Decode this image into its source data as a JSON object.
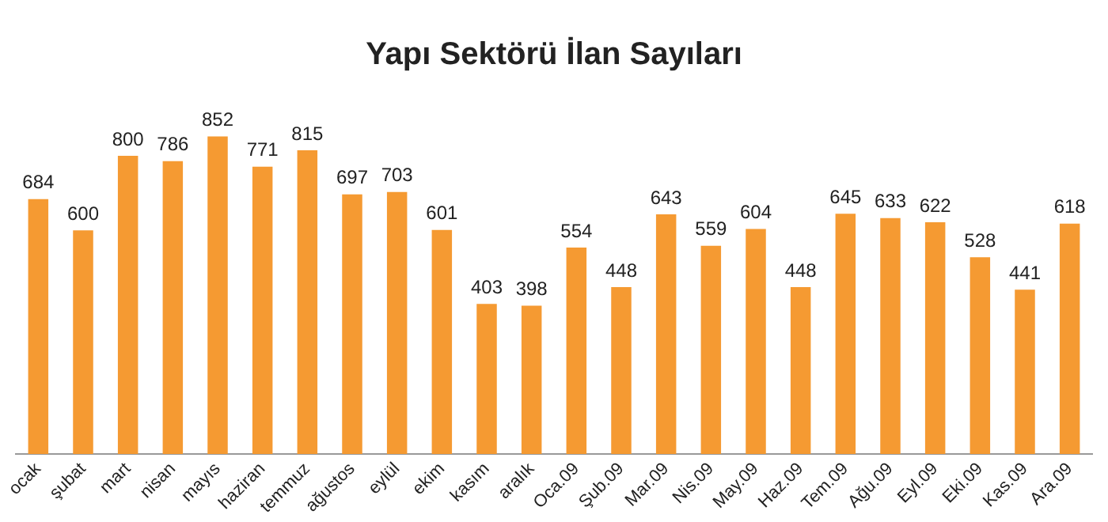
{
  "chart_data": {
    "type": "bar",
    "title": "Yapı Sektörü İlan Sayıları",
    "categories": [
      "ocak",
      "şubat",
      "mart",
      "nisan",
      "mayıs",
      "haziran",
      "temmuz",
      "ağustos",
      "eylül",
      "ekim",
      "kasım",
      "aralık",
      "Oca.09",
      "Şub.09",
      "Mar.09",
      "Nis.09",
      "May.09",
      "Haz.09",
      "Tem.09",
      "Ağu.09",
      "Eyl.09",
      "Eki.09",
      "Kas.09",
      "Ara.09"
    ],
    "values": [
      684,
      600,
      800,
      786,
      852,
      771,
      815,
      697,
      703,
      601,
      403,
      398,
      554,
      448,
      643,
      559,
      604,
      448,
      645,
      633,
      622,
      528,
      441,
      618
    ],
    "color": "#f59a32",
    "data_labels": true
  }
}
